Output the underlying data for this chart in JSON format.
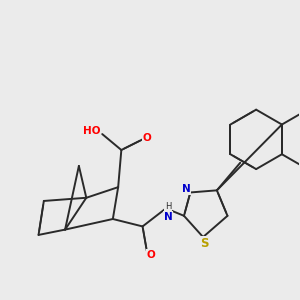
{
  "bg_color": "#ebebeb",
  "bond_color": "#2a2a2a",
  "bond_width": 1.4,
  "dbo": 0.012,
  "atom_colors": {
    "O": "#ff0000",
    "N": "#0000cc",
    "S": "#b8a000",
    "C": "#2a2a2a"
  },
  "fs": 7.5,
  "figsize": [
    3.0,
    3.0
  ],
  "dpi": 100
}
